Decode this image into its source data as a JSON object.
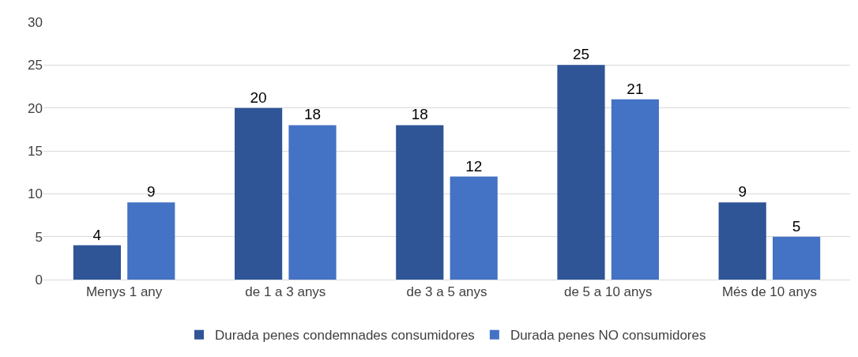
{
  "chart_data": {
    "type": "bar",
    "categories": [
      "Menys 1 any",
      "de 1 a 3 anys",
      "de 3 a 5 anys",
      "de 5 a 10 anys",
      "Més de 10 anys"
    ],
    "series": [
      {
        "name": "Durada penes condemnades consumidores",
        "color": "#2f5597",
        "values": [
          4,
          20,
          18,
          25,
          9
        ]
      },
      {
        "name": "Durada penes NO consumidores",
        "color": "#4472c4",
        "values": [
          9,
          18,
          12,
          21,
          5
        ]
      }
    ],
    "ylim": [
      0,
      30
    ],
    "yticks": [
      0,
      5,
      10,
      15,
      20,
      25,
      30
    ],
    "grid": "y",
    "legend": "bottom",
    "data_labels": true
  }
}
